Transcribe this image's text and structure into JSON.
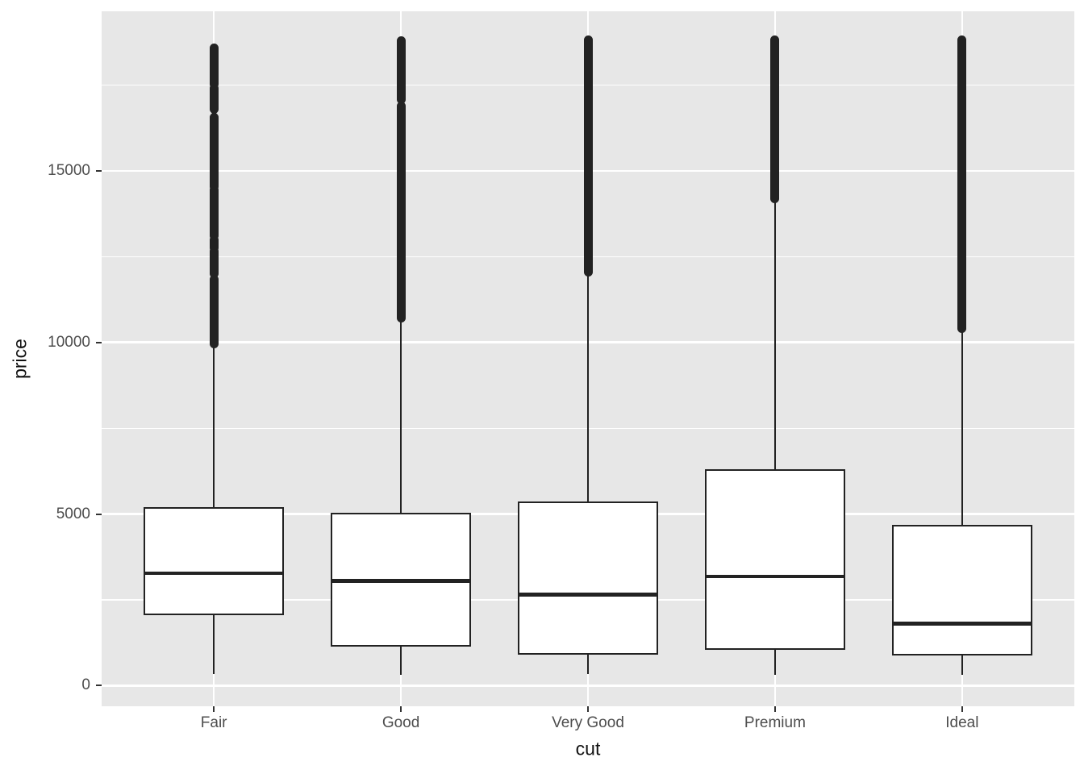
{
  "chart_data": {
    "type": "boxplot",
    "title": "",
    "xlabel": "cut",
    "ylabel": "price",
    "categories": [
      "Fair",
      "Good",
      "Very Good",
      "Premium",
      "Ideal"
    ],
    "y_axis": {
      "ticks": [
        0,
        5000,
        10000,
        15000
      ],
      "tick_labels": [
        "0",
        "5000",
        "10000",
        "15000"
      ],
      "minor_ticks": [
        2500,
        7500,
        12500,
        17500
      ],
      "range": [
        -600,
        19650
      ]
    },
    "legend": "none",
    "grid": "white major and minor horizontal gridlines plus vertical category gridlines on grey panel",
    "series": [
      {
        "category": "Fair",
        "min": 337,
        "q1": 2050,
        "median": 3282,
        "q3": 5206,
        "whisker_high": 9900,
        "outlier_segments": [
          [
            9950,
            11850
          ],
          [
            12000,
            12650
          ],
          [
            12750,
            13000
          ],
          [
            13100,
            14450
          ],
          [
            14550,
            16550
          ],
          [
            16800,
            17400
          ],
          [
            17520,
            18590
          ]
        ],
        "max": 18590
      },
      {
        "category": "Good",
        "min": 327,
        "q1": 1145,
        "median": 3050,
        "q3": 5028,
        "whisker_high": 10840,
        "outlier_segments": [
          [
            10700,
            16900
          ],
          [
            17080,
            18790
          ]
        ],
        "max": 18790
      },
      {
        "category": "Very Good",
        "min": 336,
        "q1": 912,
        "median": 2648,
        "q3": 5373,
        "whisker_high": 12050,
        "outlier_segments": [
          [
            12060,
            18820
          ]
        ],
        "max": 18820
      },
      {
        "category": "Premium",
        "min": 326,
        "q1": 1046,
        "median": 3185,
        "q3": 6296,
        "whisker_high": 14160,
        "outlier_segments": [
          [
            14180,
            18823
          ]
        ],
        "max": 18823
      },
      {
        "category": "Ideal",
        "min": 326,
        "q1": 878,
        "median": 1810,
        "q3": 4679,
        "whisker_high": 10370,
        "outlier_segments": [
          [
            10400,
            18806
          ]
        ],
        "max": 18806
      }
    ],
    "style": {
      "panel_bg": "#E7E7E7",
      "grid_color": "#FFFFFF",
      "box_fill": "#FFFFFF",
      "line_color": "#222222",
      "tick_color": "#333333",
      "tick_label_color": "#4D4D4D",
      "axis_title_color": "#111111"
    }
  }
}
